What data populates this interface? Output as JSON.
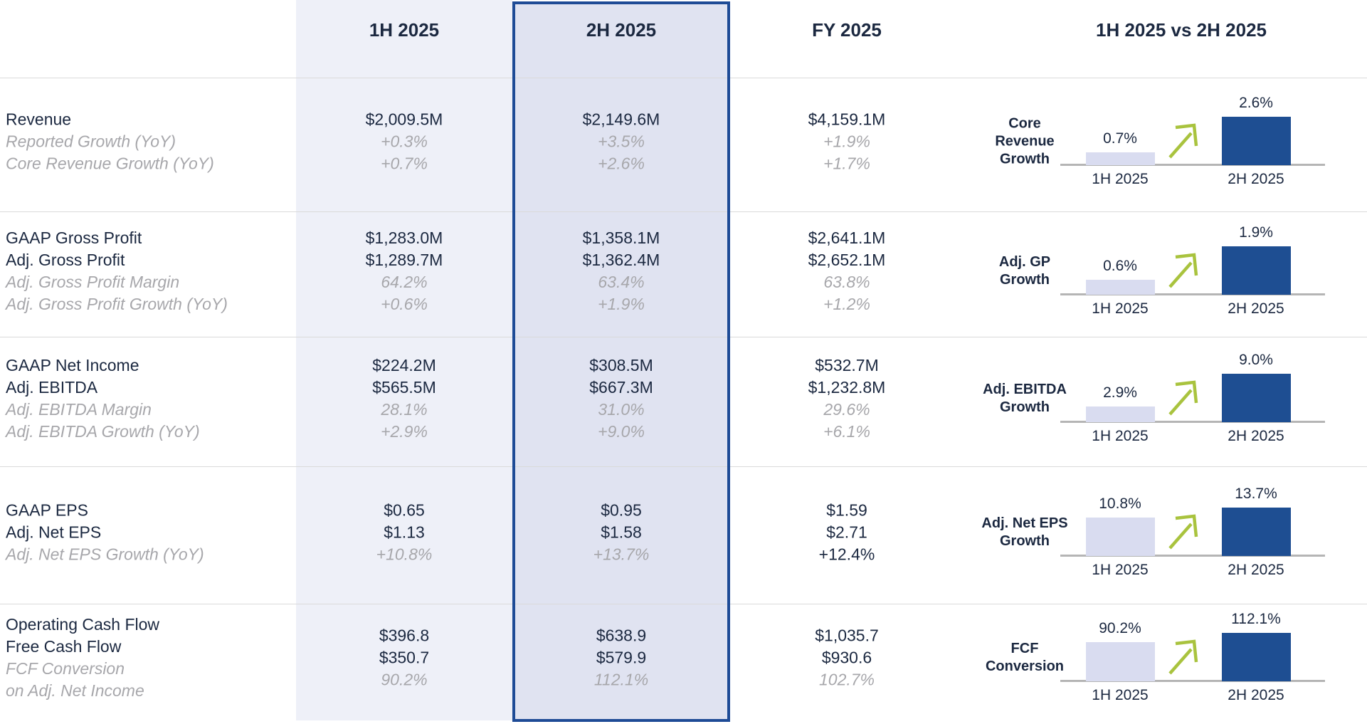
{
  "header": {
    "col_1h": "1H 2025",
    "col_2h": "2H 2025",
    "col_fy": "FY 2025",
    "col_compare": "1H 2025 vs 2H 2025"
  },
  "chart_axis_labels": [
    "1H 2025",
    "2H 2025"
  ],
  "colors": {
    "text_dark": "#1b2840",
    "text_muted": "#a7a7ab",
    "band_1h": "#eef0f8",
    "band_2h": "#e0e3f1",
    "border_2h": "#1e4b96",
    "bar_light": "#d9dcf0",
    "bar_dark": "#1e4e92",
    "arrow_green": "#a9c33e",
    "baseline": "#b5b5b5",
    "divider": "#dadada"
  },
  "rows": [
    {
      "labels": [
        {
          "text": "Revenue",
          "muted": false
        },
        {
          "text": "Reported Growth (YoY)",
          "muted": true
        },
        {
          "text": "Core Revenue Growth (YoY)",
          "muted": true
        }
      ],
      "h1": [
        {
          "text": "$2,009.5M",
          "muted": false
        },
        {
          "text": "+0.3%",
          "muted": true
        },
        {
          "text": "+0.7%",
          "muted": true
        }
      ],
      "h2": [
        {
          "text": "$2,149.6M",
          "muted": false
        },
        {
          "text": "+3.5%",
          "muted": true
        },
        {
          "text": "+2.6%",
          "muted": true
        }
      ],
      "fy": [
        {
          "text": "$4,159.1M",
          "muted": false
        },
        {
          "text": "+1.9%",
          "muted": true
        },
        {
          "text": "+1.7%",
          "muted": true
        }
      ],
      "chart": {
        "label_lines": [
          "Core",
          "Revenue",
          "Growth"
        ],
        "bars": [
          {
            "label": "0.7%",
            "value": 0.7
          },
          {
            "label": "2.6%",
            "value": 2.6
          }
        ]
      }
    },
    {
      "labels": [
        {
          "text": "GAAP Gross Profit",
          "muted": false
        },
        {
          "text": "Adj. Gross Profit",
          "muted": false
        },
        {
          "text": "Adj. Gross Profit Margin",
          "muted": true
        },
        {
          "text": "Adj. Gross Profit Growth (YoY)",
          "muted": true
        }
      ],
      "h1": [
        {
          "text": "$1,283.0M",
          "muted": false
        },
        {
          "text": "$1,289.7M",
          "muted": false
        },
        {
          "text": "64.2%",
          "muted": true
        },
        {
          "text": "+0.6%",
          "muted": true
        }
      ],
      "h2": [
        {
          "text": "$1,358.1M",
          "muted": false
        },
        {
          "text": "$1,362.4M",
          "muted": false
        },
        {
          "text": "63.4%",
          "muted": true
        },
        {
          "text": "+1.9%",
          "muted": true
        }
      ],
      "fy": [
        {
          "text": "$2,641.1M",
          "muted": false
        },
        {
          "text": "$2,652.1M",
          "muted": false
        },
        {
          "text": "63.8%",
          "muted": true
        },
        {
          "text": "+1.2%",
          "muted": true
        }
      ],
      "chart": {
        "label_lines": [
          "Adj. GP",
          "Growth"
        ],
        "bars": [
          {
            "label": "0.6%",
            "value": 0.6
          },
          {
            "label": "1.9%",
            "value": 1.9
          }
        ]
      }
    },
    {
      "labels": [
        {
          "text": "GAAP Net Income",
          "muted": false
        },
        {
          "text": "Adj. EBITDA",
          "muted": false
        },
        {
          "text": "Adj. EBITDA Margin",
          "muted": true
        },
        {
          "text": "Adj. EBITDA Growth (YoY)",
          "muted": true
        }
      ],
      "h1": [
        {
          "text": "$224.2M",
          "muted": false
        },
        {
          "text": "$565.5M",
          "muted": false
        },
        {
          "text": "28.1%",
          "muted": true
        },
        {
          "text": "+2.9%",
          "muted": true
        }
      ],
      "h2": [
        {
          "text": "$308.5M",
          "muted": false
        },
        {
          "text": "$667.3M",
          "muted": false
        },
        {
          "text": "31.0%",
          "muted": true
        },
        {
          "text": "+9.0%",
          "muted": true
        }
      ],
      "fy": [
        {
          "text": "$532.7M",
          "muted": false
        },
        {
          "text": "$1,232.8M",
          "muted": false
        },
        {
          "text": "29.6%",
          "muted": true
        },
        {
          "text": "+6.1%",
          "muted": true
        }
      ],
      "chart": {
        "label_lines": [
          "Adj. EBITDA",
          "Growth"
        ],
        "bars": [
          {
            "label": "2.9%",
            "value": 2.9
          },
          {
            "label": "9.0%",
            "value": 9.0
          }
        ]
      }
    },
    {
      "labels": [
        {
          "text": "GAAP EPS",
          "muted": false
        },
        {
          "text": "Adj. Net EPS",
          "muted": false
        },
        {
          "text": "Adj. Net EPS Growth (YoY)",
          "muted": true
        }
      ],
      "h1": [
        {
          "text": "$0.65",
          "muted": false
        },
        {
          "text": "$1.13",
          "muted": false
        },
        {
          "text": "+10.8%",
          "muted": true
        }
      ],
      "h2": [
        {
          "text": "$0.95",
          "muted": false
        },
        {
          "text": "$1.58",
          "muted": false
        },
        {
          "text": "+13.7%",
          "muted": true
        }
      ],
      "fy": [
        {
          "text": "$1.59",
          "muted": false
        },
        {
          "text": "$2.71",
          "muted": false
        },
        {
          "text": "+12.4%",
          "muted": false
        }
      ],
      "chart": {
        "label_lines": [
          "Adj. Net EPS",
          "Growth"
        ],
        "bars": [
          {
            "label": "10.8%",
            "value": 10.8
          },
          {
            "label": "13.7%",
            "value": 13.7
          }
        ]
      }
    },
    {
      "labels": [
        {
          "text": "Operating Cash Flow",
          "muted": false
        },
        {
          "text": "Free Cash Flow",
          "muted": false
        },
        {
          "text": "FCF Conversion",
          "muted": true
        },
        {
          "text": "on Adj. Net Income",
          "muted": true
        }
      ],
      "h1": [
        {
          "text": "$396.8",
          "muted": false
        },
        {
          "text": "$350.7",
          "muted": false
        },
        {
          "text": "90.2%",
          "muted": true
        }
      ],
      "h2": [
        {
          "text": "$638.9",
          "muted": false
        },
        {
          "text": "$579.9",
          "muted": false
        },
        {
          "text": "112.1%",
          "muted": true
        }
      ],
      "fy": [
        {
          "text": "$1,035.7",
          "muted": false
        },
        {
          "text": "$930.6",
          "muted": false
        },
        {
          "text": "102.7%",
          "muted": true
        }
      ],
      "chart": {
        "label_lines": [
          "FCF",
          "Conversion"
        ],
        "bars": [
          {
            "label": "90.2%",
            "value": 90.2
          },
          {
            "label": "112.1%",
            "value": 112.1
          }
        ]
      }
    }
  ],
  "chart_data": [
    {
      "type": "bar",
      "title": "Core Revenue Growth",
      "categories": [
        "1H 2025",
        "2H 2025"
      ],
      "values": [
        0.7,
        2.6
      ],
      "unit": "%"
    },
    {
      "type": "bar",
      "title": "Adj. GP Growth",
      "categories": [
        "1H 2025",
        "2H 2025"
      ],
      "values": [
        0.6,
        1.9
      ],
      "unit": "%"
    },
    {
      "type": "bar",
      "title": "Adj. EBITDA Growth",
      "categories": [
        "1H 2025",
        "2H 2025"
      ],
      "values": [
        2.9,
        9.0
      ],
      "unit": "%"
    },
    {
      "type": "bar",
      "title": "Adj. Net EPS Growth",
      "categories": [
        "1H 2025",
        "2H 2025"
      ],
      "values": [
        10.8,
        13.7
      ],
      "unit": "%"
    },
    {
      "type": "bar",
      "title": "FCF Conversion",
      "categories": [
        "1H 2025",
        "2H 2025"
      ],
      "values": [
        90.2,
        112.1
      ],
      "unit": "%"
    }
  ]
}
